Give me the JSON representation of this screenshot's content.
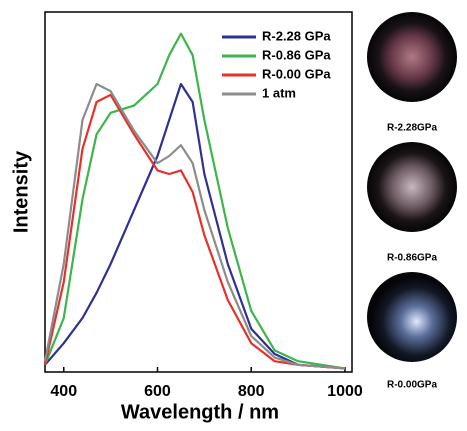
{
  "chart_data": {
    "type": "line",
    "x_label": "Wavelength / nm",
    "y_label": "Intensity",
    "x": [
      360,
      400,
      440,
      470,
      500,
      550,
      600,
      625,
      650,
      675,
      700,
      750,
      800,
      850,
      900,
      1000
    ],
    "series": [
      {
        "name": "R-2.28 GPa",
        "color": "#2e3192",
        "values": [
          0.02,
          0.08,
          0.15,
          0.22,
          0.3,
          0.45,
          0.6,
          0.7,
          0.8,
          0.75,
          0.55,
          0.3,
          0.12,
          0.05,
          0.02,
          0.01
        ]
      },
      {
        "name": "R-0.86 GPa",
        "color": "#3cb54a",
        "values": [
          0.02,
          0.15,
          0.48,
          0.66,
          0.72,
          0.74,
          0.8,
          0.88,
          0.94,
          0.88,
          0.7,
          0.4,
          0.17,
          0.06,
          0.03,
          0.01
        ]
      },
      {
        "name": "R-0.00 GPa",
        "color": "#e8302a",
        "values": [
          0.02,
          0.25,
          0.62,
          0.75,
          0.77,
          0.66,
          0.56,
          0.55,
          0.56,
          0.5,
          0.38,
          0.2,
          0.08,
          0.03,
          0.02,
          0.01
        ]
      },
      {
        "name": "1 atm",
        "color": "#8c8c8c",
        "values": [
          0.03,
          0.3,
          0.7,
          0.8,
          0.78,
          0.67,
          0.58,
          0.6,
          0.63,
          0.58,
          0.45,
          0.25,
          0.1,
          0.04,
          0.02,
          0.01
        ]
      }
    ],
    "xlim": [
      360,
      1015
    ],
    "xticks": [
      400,
      600,
      800,
      1000
    ],
    "ylim": [
      0,
      1
    ],
    "legend": "upper right"
  },
  "photos": {
    "captions": [
      "R-2.28GPa",
      "R-0.86GPa",
      "R-0.00GPa"
    ]
  }
}
